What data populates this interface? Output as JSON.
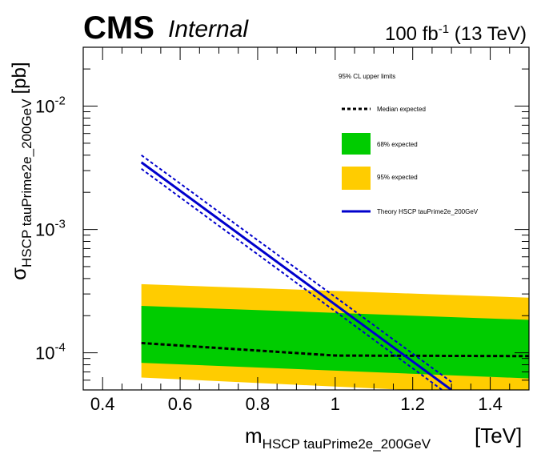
{
  "chart_data": {
    "type": "line",
    "header": {
      "experiment": "CMS",
      "status": "Internal",
      "lumi_value": "100 fb",
      "lumi_exp": "-1",
      "energy": " (13 TeV)"
    },
    "xlabel_main": "m",
    "xlabel_sub": "HSCP  tauPrime2e_200GeV",
    "xlabel_unit": "[TeV]",
    "ylabel_main": "σ",
    "ylabel_sub": "HSCP tauPrime2e_200GeV",
    "ylabel_unit": "[pb]",
    "xlim": [
      0.35,
      1.5
    ],
    "ylim": [
      5e-05,
      0.03
    ],
    "yscale": "log",
    "x_ticks": [
      "0.4",
      "0.6",
      "0.8",
      "1",
      "1.2",
      "1.4"
    ],
    "x_tick_values": [
      0.4,
      0.6,
      0.8,
      1.0,
      1.2,
      1.4
    ],
    "y_ticks": [
      {
        "value": 0.01,
        "base": "10",
        "exp": "-2"
      },
      {
        "value": 0.001,
        "base": "10",
        "exp": "-3"
      },
      {
        "value": 0.0001,
        "base": "10",
        "exp": "-4"
      }
    ],
    "legend": {
      "title": "95% CL upper limits",
      "placement": "top-right",
      "entries": [
        {
          "label": "Median expected",
          "style": "dashed",
          "color": "#000000"
        },
        {
          "label": "68% expected",
          "style": "fill",
          "color": "#00cc00"
        },
        {
          "label": "95% expected",
          "style": "fill",
          "color": "#ffcc00"
        },
        {
          "label": "Theory HSCP tauPrime2e_200GeV",
          "style": "solid",
          "color": "#0000cc"
        }
      ]
    },
    "series": [
      {
        "role": "band95_upper",
        "x": [
          0.5,
          1.5
        ],
        "y": [
          0.00036,
          0.00028
        ]
      },
      {
        "role": "band95_lower",
        "x": [
          0.5,
          1.5
        ],
        "y": [
          6.3e-05,
          4.5e-05
        ]
      },
      {
        "role": "band68_upper",
        "x": [
          0.5,
          1.5
        ],
        "y": [
          0.00024,
          0.000185
        ]
      },
      {
        "role": "band68_lower",
        "x": [
          0.5,
          1.5
        ],
        "y": [
          8.3e-05,
          6.2e-05
        ]
      },
      {
        "role": "median",
        "x": [
          0.5,
          1.0,
          1.5
        ],
        "y": [
          0.00012,
          9.5e-05,
          9.4e-05
        ]
      },
      {
        "role": "theory",
        "x": [
          0.5,
          1.3
        ],
        "y": [
          0.0035,
          5e-05
        ]
      },
      {
        "role": "theory_upper",
        "x": [
          0.5,
          1.3
        ],
        "y": [
          0.004,
          5.8e-05
        ]
      },
      {
        "role": "theory_lower",
        "x": [
          0.5,
          1.3
        ],
        "y": [
          0.0031,
          4.4e-05
        ]
      }
    ],
    "colors": {
      "band95": "#ffcc00",
      "band68": "#00cc00",
      "median": "#000000",
      "theory": "#0000cc"
    }
  }
}
